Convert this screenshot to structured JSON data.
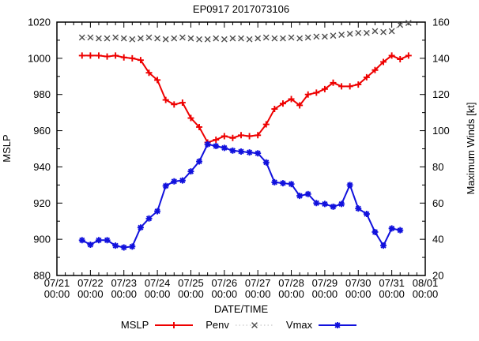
{
  "title": "EP0917 2017073106",
  "axes": {
    "left_label": "MSLP",
    "right_label": "Maximum Winds [kt]",
    "x_label": "DATE/TIME",
    "left_ticks": [
      880,
      900,
      920,
      940,
      960,
      980,
      1000,
      1020
    ],
    "right_ticks": [
      20,
      40,
      60,
      80,
      100,
      120,
      140,
      160
    ],
    "x_tick_dates": [
      "07/21",
      "07/22",
      "07/23",
      "07/24",
      "07/25",
      "07/26",
      "07/27",
      "07/28",
      "07/29",
      "07/30",
      "07/31",
      "08/01"
    ],
    "x_tick_time": "00:00",
    "left_range": [
      880,
      1020
    ],
    "right_range": [
      20,
      160
    ],
    "x_span_days": 11
  },
  "legend": [
    {
      "label": "MSLP",
      "color": "#ee0000",
      "line": "solid",
      "marker": "plus"
    },
    {
      "label": "Penv",
      "color": "#4d4d4d",
      "line": "dotted",
      "marker": "cross"
    },
    {
      "label": "Vmax",
      "color": "#1111dd",
      "line": "solid",
      "marker": "asterisk"
    }
  ],
  "chart_data": {
    "type": "line",
    "title": "EP0917 2017073106",
    "xlabel": "DATE/TIME",
    "ylabel_left": "MSLP",
    "ylabel_right": "Maximum Winds [kt]",
    "ylim_left": [
      880,
      1020
    ],
    "ylim_right": [
      20,
      160
    ],
    "x": [
      "07/21 18:00",
      "07/22 00:00",
      "07/22 06:00",
      "07/22 12:00",
      "07/22 18:00",
      "07/23 00:00",
      "07/23 06:00",
      "07/23 12:00",
      "07/23 18:00",
      "07/24 00:00",
      "07/24 06:00",
      "07/24 12:00",
      "07/24 18:00",
      "07/25 00:00",
      "07/25 06:00",
      "07/25 12:00",
      "07/25 18:00",
      "07/26 00:00",
      "07/26 06:00",
      "07/26 12:00",
      "07/26 18:00",
      "07/27 00:00",
      "07/27 06:00",
      "07/27 12:00",
      "07/27 18:00",
      "07/28 00:00",
      "07/28 06:00",
      "07/28 12:00",
      "07/28 18:00",
      "07/29 00:00",
      "07/29 06:00",
      "07/29 12:00",
      "07/29 18:00",
      "07/30 00:00",
      "07/30 06:00",
      "07/30 12:00",
      "07/30 18:00",
      "07/31 00:00",
      "07/31 06:00",
      "07/31 12:00"
    ],
    "series": [
      {
        "name": "MSLP",
        "axis": "left",
        "color": "#ee0000",
        "line": "solid",
        "marker": "plus",
        "values": [
          1001.5,
          1001.5,
          1001.5,
          1001,
          1001.5,
          1000.5,
          1000,
          999,
          992,
          988,
          977,
          974.5,
          975.5,
          967,
          962,
          953.5,
          955,
          957,
          956,
          957.5,
          957,
          957.5,
          963.5,
          972,
          975,
          977.5,
          974,
          980,
          981,
          983,
          986.5,
          984.5,
          984.5,
          985.5,
          989.5,
          993.5,
          998,
          1001.5,
          999.5,
          1001.5
        ]
      },
      {
        "name": "Penv",
        "axis": "left",
        "color": "#4d4d4d",
        "line": "dotted",
        "marker": "cross",
        "values": [
          1011.5,
          1011.5,
          1011,
          1011,
          1011.5,
          1011,
          1010.5,
          1011,
          1011.5,
          1011,
          1010.5,
          1011,
          1011.5,
          1011,
          1010.5,
          1010.5,
          1011,
          1010.5,
          1011,
          1011,
          1010.5,
          1011,
          1011.5,
          1011,
          1011,
          1011.5,
          1011,
          1011.5,
          1012,
          1012,
          1012.5,
          1013,
          1013.5,
          1014,
          1014,
          1015,
          1014.5,
          1015,
          1018.5,
          1019.5
        ]
      },
      {
        "name": "Vmax",
        "axis": "right",
        "color": "#1111dd",
        "line": "solid",
        "marker": "asterisk",
        "values": [
          39.5,
          37,
          39.5,
          39.5,
          36.5,
          35.5,
          36,
          46.5,
          51.5,
          55.5,
          69.5,
          72,
          72.5,
          77.5,
          83,
          92.5,
          91.5,
          90.5,
          89,
          88.5,
          88,
          87.5,
          82.5,
          71.5,
          71,
          70.5,
          64,
          65,
          60,
          59.5,
          58,
          59.5,
          70,
          57,
          54,
          44,
          36.5,
          46,
          45,
          null
        ]
      }
    ]
  }
}
